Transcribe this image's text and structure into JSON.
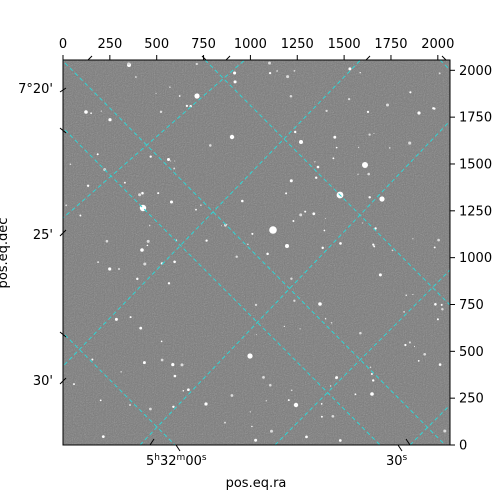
{
  "image": {
    "subject": "star-field",
    "sky_color": "#7a7a7a",
    "grid_color": "#30d5d5"
  },
  "axes": {
    "xlabel": "pos.eq.ra",
    "ylabel": "pos.eq.dec",
    "top_ticks": [
      "0",
      "250",
      "500",
      "750",
      "1000",
      "1250",
      "1500",
      "1750",
      "2000"
    ],
    "right_ticks": [
      "0",
      "250",
      "500",
      "750",
      "1000",
      "1250",
      "1500",
      "1750",
      "2000"
    ],
    "ra_ticks": [
      {
        "h": "5",
        "m": "32",
        "s": "00",
        "hsup": "h",
        "msup": "m",
        "ssup": "s"
      },
      {
        "h": "",
        "m": "",
        "s": "30",
        "hsup": "",
        "msup": "",
        "ssup": "s"
      }
    ],
    "dec_ticks": [
      "7°20'",
      "25'",
      "30'"
    ]
  }
}
